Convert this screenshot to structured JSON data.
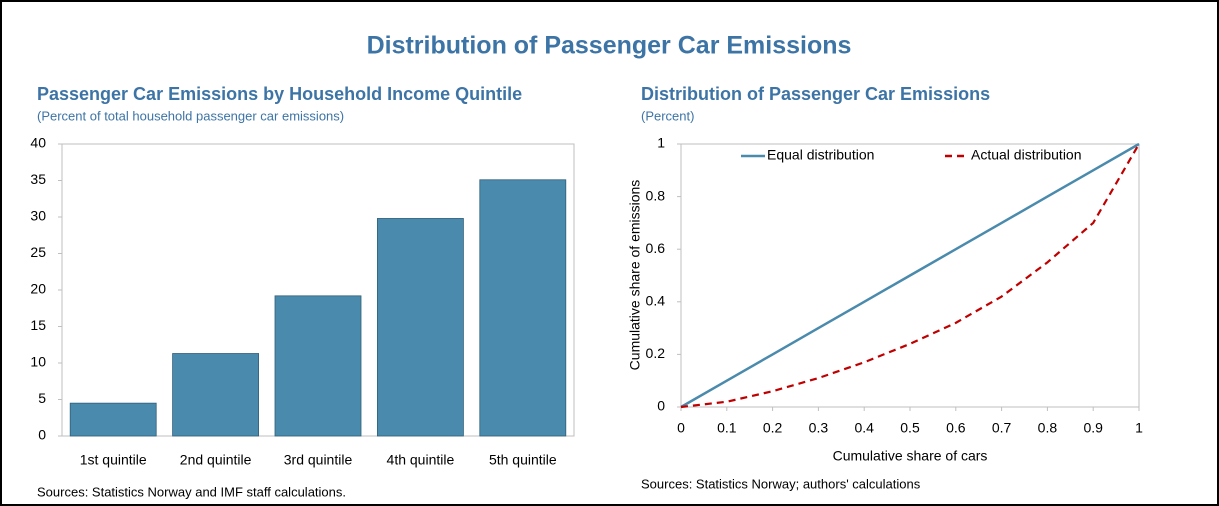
{
  "title": "Distribution of Passenger Car Emissions",
  "chart_data": [
    {
      "type": "bar",
      "title": "Passenger Car Emissions by Household Income Quintile",
      "subtitle": "(Percent of total household passenger car emissions)",
      "categories": [
        "1st quintile",
        "2nd quintile",
        "3rd quintile",
        "4th quintile",
        "5th quintile"
      ],
      "values": [
        4.5,
        11.3,
        19.2,
        29.8,
        35.1
      ],
      "color": "#4a8aad",
      "ylim": [
        0,
        40
      ],
      "yticks": [
        0,
        5,
        10,
        15,
        20,
        25,
        30,
        35,
        40
      ],
      "grid": false,
      "source": "Sources: Statistics Norway and IMF staff calculations."
    },
    {
      "type": "line",
      "title": "Distribution of Passenger Car Emissions",
      "subtitle": "(Percent)",
      "x": [
        0,
        0.1,
        0.2,
        0.3,
        0.4,
        0.5,
        0.6,
        0.7,
        0.8,
        0.9,
        1
      ],
      "series": [
        {
          "name": "Equal distribution",
          "color": "#4a8aad",
          "values": [
            0,
            0.1,
            0.2,
            0.3,
            0.4,
            0.5,
            0.6,
            0.7,
            0.8,
            0.9,
            1
          ]
        },
        {
          "name": "Actual distribution",
          "color": "#c00000",
          "dashed": true,
          "values": [
            0,
            0.02,
            0.06,
            0.11,
            0.17,
            0.24,
            0.32,
            0.42,
            0.55,
            0.7,
            1
          ]
        }
      ],
      "xlim": [
        0,
        1
      ],
      "xticks": [
        0,
        0.1,
        0.2,
        0.3,
        0.4,
        0.5,
        0.6,
        0.7,
        0.8,
        0.9,
        1
      ],
      "ylim": [
        0,
        1
      ],
      "yticks": [
        0,
        0.2,
        0.4,
        0.6,
        0.8,
        1
      ],
      "grid": false,
      "legend": "top",
      "xlabel": "Cumulative share of cars",
      "ylabel": "Cumulative share of emissions",
      "source": "Sources: Statistics Norway; authors' calculations"
    }
  ]
}
